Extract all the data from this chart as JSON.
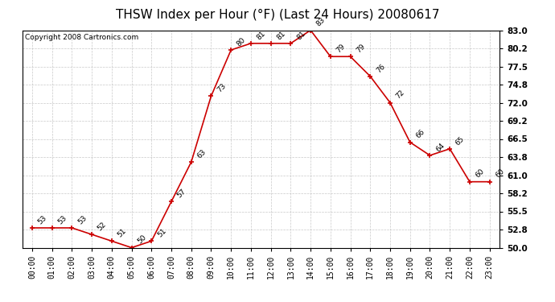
{
  "title": "THSW Index per Hour (°F) (Last 24 Hours) 20080617",
  "copyright": "Copyright 2008 Cartronics.com",
  "hours": [
    0,
    1,
    2,
    3,
    4,
    5,
    6,
    7,
    8,
    9,
    10,
    11,
    12,
    13,
    14,
    15,
    16,
    17,
    18,
    19,
    20,
    21,
    22,
    23
  ],
  "values": [
    53,
    53,
    53,
    52,
    51,
    50,
    51,
    57,
    63,
    73,
    80,
    81,
    81,
    81,
    83,
    79,
    79,
    76,
    72,
    66,
    64,
    65,
    60,
    60
  ],
  "ylim": [
    50.0,
    83.0
  ],
  "yticks": [
    50.0,
    52.8,
    55.5,
    58.2,
    61.0,
    63.8,
    66.5,
    69.2,
    72.0,
    74.8,
    77.5,
    80.2,
    83.0
  ],
  "line_color": "#cc0000",
  "bg_color": "#ffffff",
  "grid_color": "#bbbbbb",
  "title_fontsize": 11,
  "copyright_fontsize": 6.5,
  "tick_fontsize": 7,
  "label_fontsize": 6.5
}
